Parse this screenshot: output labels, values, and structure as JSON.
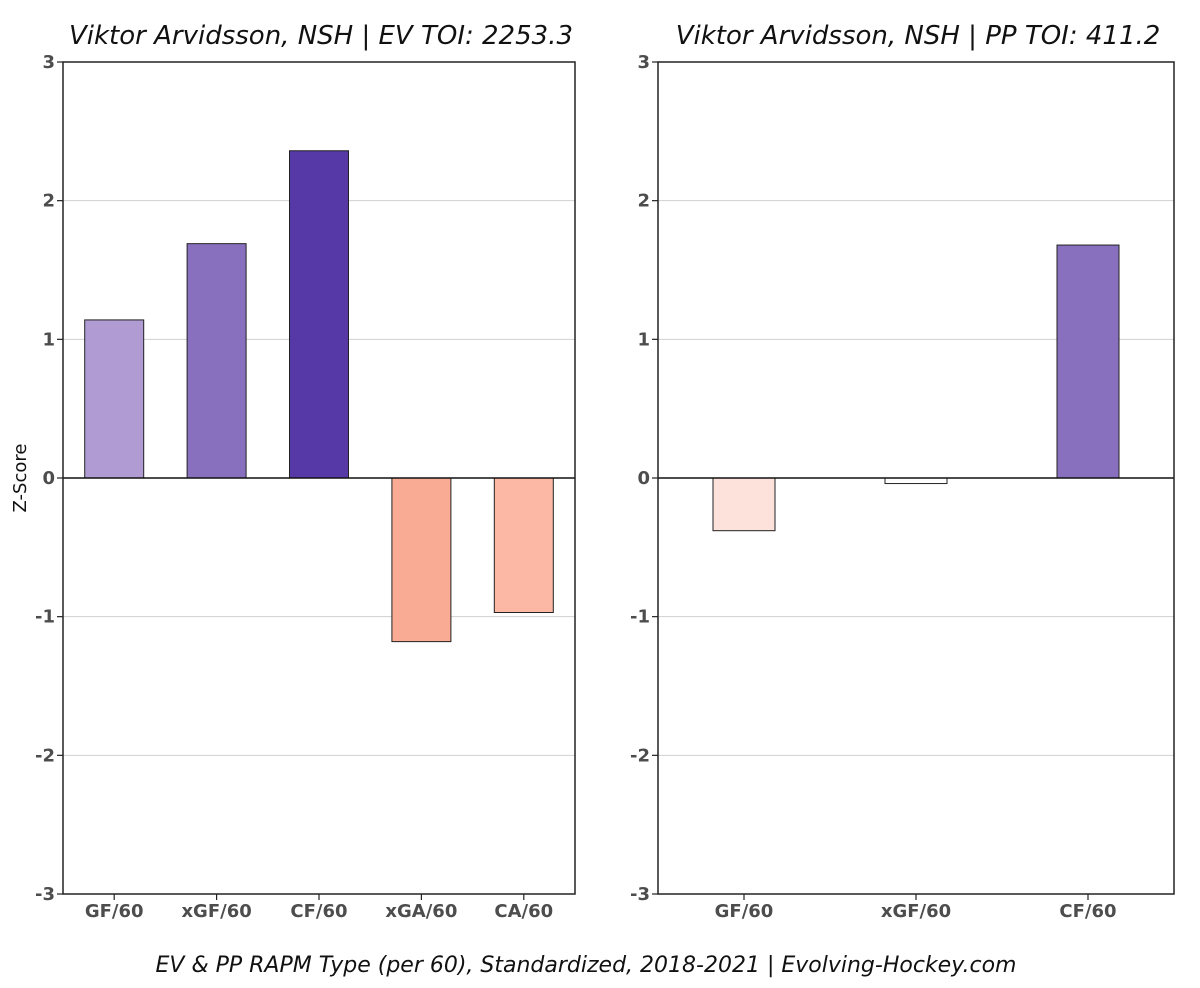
{
  "caption": "EV & PP RAPM Type (per 60), Standardized, 2018-2021    |    Evolving-Hockey.com",
  "chart_data": [
    {
      "type": "bar",
      "title": "Viktor Arvidsson, NSH  |  EV TOI: 2253.3",
      "ylabel": "Z-Score",
      "xlabel": "",
      "ylim": [
        -3,
        3
      ],
      "yticks": [
        3,
        2,
        1,
        0,
        -1,
        -2,
        -3
      ],
      "yticklabels": [
        "3",
        "2",
        "1",
        "0",
        "-1",
        "-2",
        "-3"
      ],
      "grid": "horizontal",
      "categories": [
        "GF/60",
        "xGF/60",
        "CF/60",
        "xGA/60",
        "CA/60"
      ],
      "values": [
        1.14,
        1.69,
        2.36,
        -1.18,
        -0.97
      ],
      "colors": [
        "#b09bd3",
        "#8870be",
        "#5638a6",
        "#f9ab94",
        "#fcb8a5"
      ]
    },
    {
      "type": "bar",
      "title": "Viktor Arvidsson, NSH  |  PP TOI: 411.2",
      "ylabel": "",
      "xlabel": "",
      "ylim": [
        -3,
        3
      ],
      "yticks": [
        3,
        2,
        1,
        0,
        -1,
        -2,
        -3
      ],
      "yticklabels": [
        "3",
        "2",
        "1",
        "0",
        "-1",
        "-2",
        "-3"
      ],
      "grid": "horizontal",
      "categories": [
        "GF/60",
        "xGF/60",
        "CF/60"
      ],
      "values": [
        -0.38,
        -0.04,
        1.68
      ],
      "colors": [
        "#fde2dc",
        "#ffffff",
        "#8870be"
      ]
    }
  ]
}
